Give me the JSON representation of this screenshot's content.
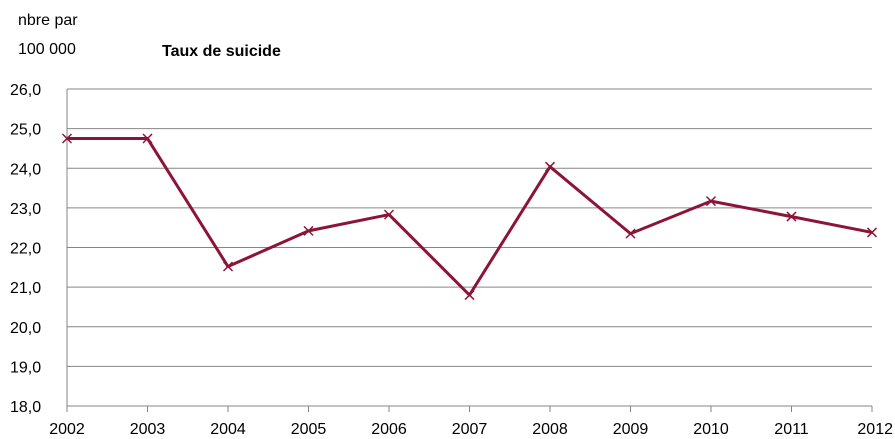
{
  "chart_data": {
    "type": "line",
    "title": "Taux de suicide",
    "ylabel_lines": [
      "nbre par",
      "100 000"
    ],
    "xlabel": "",
    "x": [
      "2002",
      "2003",
      "2004",
      "2005",
      "2006",
      "2007",
      "2008",
      "2009",
      "2010",
      "2011",
      "2012"
    ],
    "series": [
      {
        "values": [
          24.75,
          24.75,
          21.52,
          22.42,
          22.83,
          20.8,
          24.04,
          22.35,
          23.17,
          22.78,
          22.38
        ]
      }
    ],
    "ylim": [
      18,
      26
    ],
    "yticks": [
      18,
      19,
      20,
      21,
      22,
      23,
      24,
      25,
      26
    ],
    "ytick_labels": [
      "18,0",
      "19,0",
      "20,0",
      "21,0",
      "22,0",
      "23,0",
      "24,0",
      "25,0",
      "26,0"
    ],
    "grid": true,
    "colors": {
      "line": "#8b1538",
      "grid": "#868686",
      "axis": "#868686"
    }
  }
}
